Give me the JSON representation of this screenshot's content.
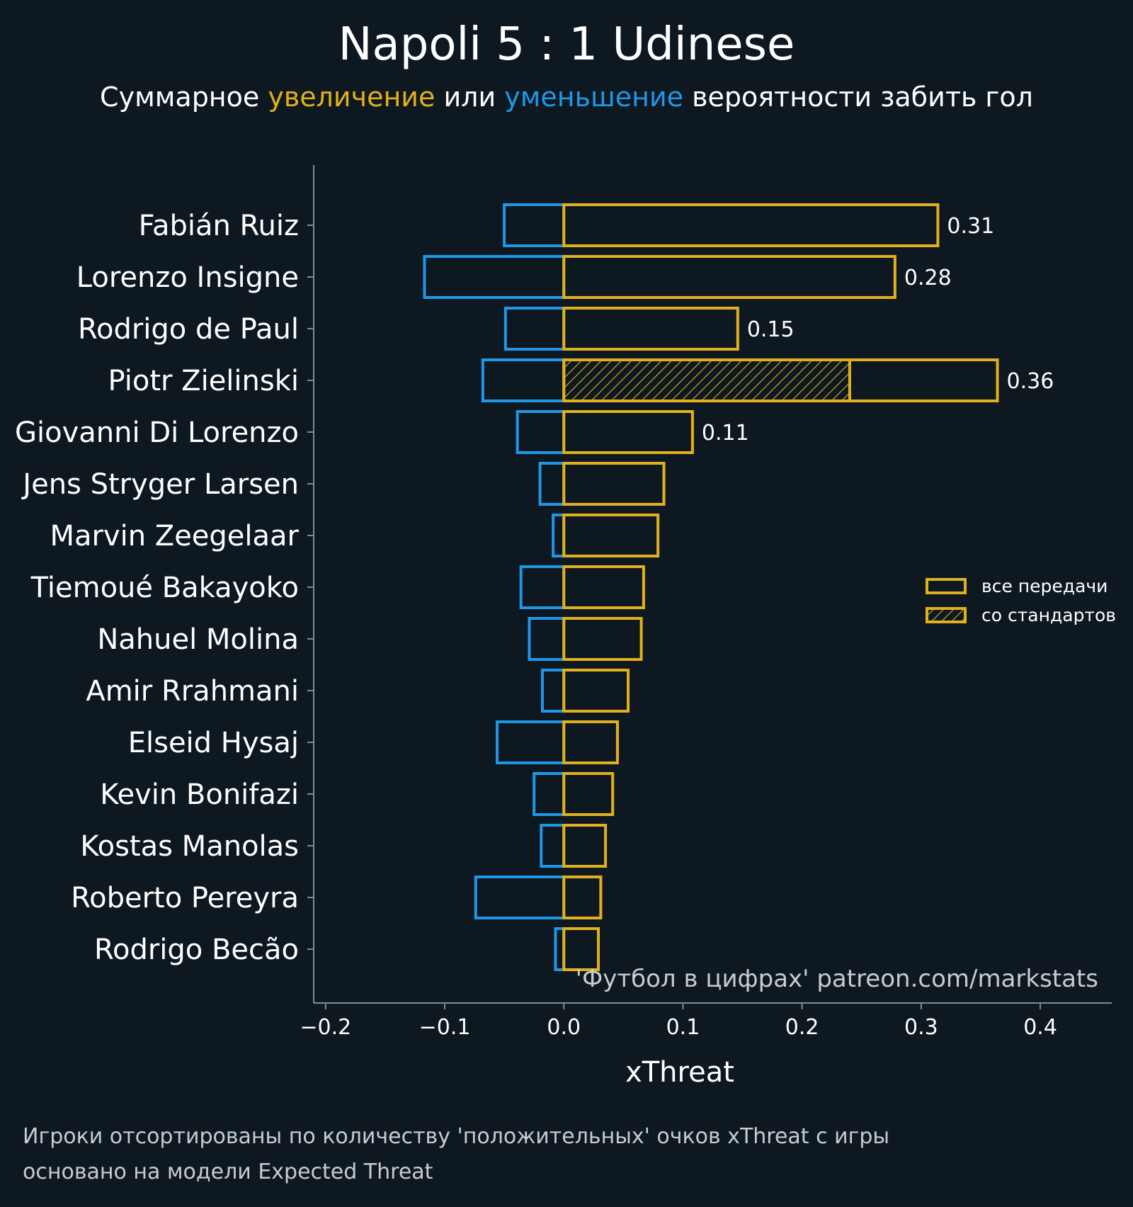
{
  "chart_data": {
    "type": "bar",
    "orientation": "horizontal-diverging",
    "title": "Napoli 5 : 1 Udinese",
    "subtitle": {
      "prefix": "Суммарное ",
      "positive_word": "увеличение",
      "middle": " или ",
      "negative_word": "уменьшение",
      "suffix": " вероятности забить гол"
    },
    "xlabel": "xThreat",
    "xlim": [
      -0.21,
      0.46
    ],
    "xticks": [
      -0.2,
      -0.1,
      0.0,
      0.1,
      0.2,
      0.3,
      0.4
    ],
    "xtick_labels": [
      "−0.2",
      "−0.1",
      "0.0",
      "0.1",
      "0.2",
      "0.3",
      "0.4"
    ],
    "categories": [
      "Fabián Ruiz",
      "Lorenzo Insigne",
      "Rodrigo de Paul",
      "Piotr Zielinski",
      "Giovanni Di Lorenzo",
      "Jens Stryger Larsen",
      "Marvin Zeegelaar",
      "Tiemoué Bakayoko",
      "Nahuel Molina",
      "Amir Rrahmani",
      "Elseid Hysaj",
      "Kevin Bonifazi",
      "Kostas Manolas",
      "Roberto Pereyra",
      "Rodrigo Becão"
    ],
    "series": [
      {
        "name": "negative",
        "values": [
          -0.05,
          -0.117,
          -0.049,
          -0.068,
          -0.039,
          -0.02,
          -0.009,
          -0.036,
          -0.029,
          -0.018,
          -0.056,
          -0.025,
          -0.019,
          -0.074,
          -0.007
        ]
      },
      {
        "name": "positive",
        "values": [
          0.314,
          0.278,
          0.146,
          0.364,
          0.108,
          0.084,
          0.079,
          0.067,
          0.065,
          0.054,
          0.045,
          0.041,
          0.035,
          0.031,
          0.029
        ]
      },
      {
        "name": "set_pieces",
        "values": [
          0,
          0,
          0,
          0.24,
          0,
          0,
          0,
          0,
          0,
          0,
          0,
          0,
          0,
          0,
          0
        ]
      }
    ],
    "value_labels": [
      "0.31",
      "0.28",
      "0.15",
      "0.36",
      "0.11",
      null,
      null,
      null,
      null,
      null,
      null,
      null,
      null,
      null,
      null
    ],
    "legend": {
      "position": "right",
      "entries": [
        {
          "label": "все передачи",
          "style": "outline"
        },
        {
          "label": "со стандартов",
          "style": "hatched"
        }
      ]
    },
    "watermark": "'Футбол в цифрах' patreon.com/markstats",
    "footnotes": [
      "Игроки отсортированы по количеству 'положительных' очков xThreat с игры",
      "основано на модели Expected Threat"
    ],
    "colors": {
      "background": "#0e1821",
      "positive": "#e0b01e",
      "negative": "#1f97e6",
      "axis": "#7f8b94",
      "text": "#ffffff",
      "muted_text": "#c8ccd0"
    }
  }
}
